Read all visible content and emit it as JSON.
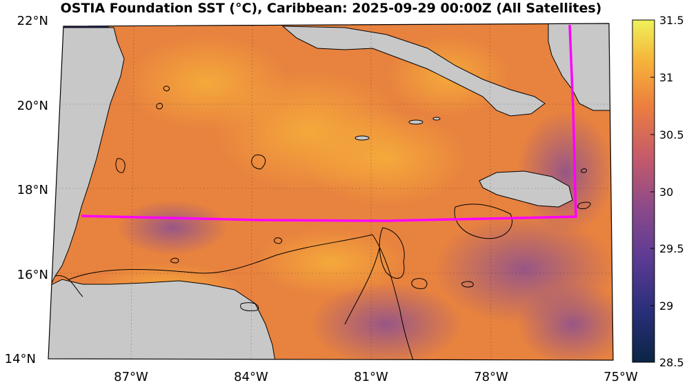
{
  "title": "OSTIA Foundation SST (°C), Caribbean: 2025-09-29 00:00Z (All Satellites)",
  "map": {
    "lat_labels": [
      "22°N",
      "20°N",
      "18°N",
      "16°N",
      "14°N"
    ],
    "lon_labels": [
      "87°W",
      "84°W",
      "81°W",
      "78°W",
      "75°W"
    ],
    "box_color": "#ff00ff",
    "land_color": "#c8c8c8",
    "coast_color": "#000000"
  },
  "colorbar": {
    "ticks": [
      "31.5",
      "31",
      "30.5",
      "30",
      "29.5",
      "29",
      "28.5"
    ],
    "range": [
      28.5,
      31.5
    ],
    "colors": [
      "#0b2545",
      "#2a2f7a",
      "#5b3a93",
      "#8b4a8a",
      "#c65a6a",
      "#ec7f3f",
      "#f6b33a",
      "#eef25a"
    ]
  }
}
